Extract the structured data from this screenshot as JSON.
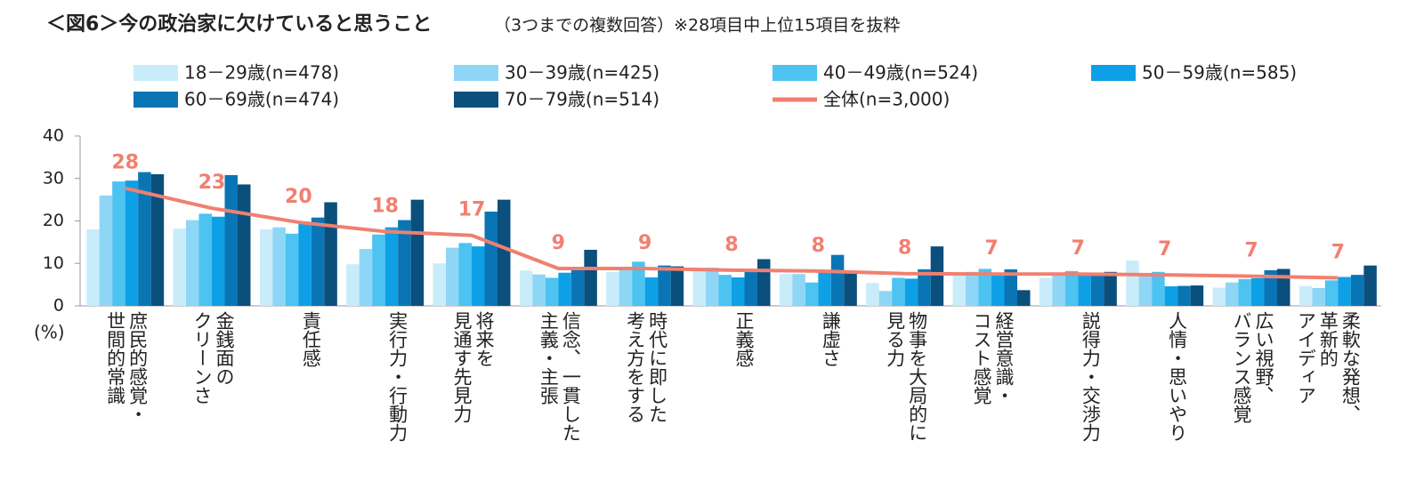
{
  "chart_data": {
    "type": "bar",
    "title": "＜図6＞今の政治家に欠けていると思うこと",
    "subtitle": "（3つまでの複数回答）※28項目中上位15項目を抜粋",
    "y_label": "(%)",
    "categories": [
      "庶民的感覚・\n世間的常識",
      "金銭面の\nクリーンさ",
      "責任感",
      "実行力・行動力",
      "将来を\n見通す先見力",
      "信念、一貫した\n主義・主張",
      "時代に即した\n考え方をする",
      "正義感",
      "謙虚さ",
      "物事を大局的に\n見る力",
      "経営意識・\nコスト感覚",
      "説得力・交渉力",
      "人情・思いやり",
      "広い視野、\nバランス感覚",
      "柔軟な発想、\n革新的\nアイディア"
    ],
    "series": [
      {
        "name": "18－29歳(n=478)",
        "color": "#c9ecfb",
        "values": [
          18,
          18.2,
          18,
          9.8,
          10,
          8.3,
          8,
          9,
          7.5,
          5.4,
          7.5,
          6.6,
          10.7,
          4.3,
          4.7
        ]
      },
      {
        "name": "30－39歳(n=425)",
        "color": "#8fd6f6",
        "values": [
          26,
          20.2,
          18.5,
          13.4,
          13.7,
          7.4,
          9.2,
          9,
          7.5,
          3.5,
          8,
          7.2,
          7.6,
          5.5,
          4.2
        ]
      },
      {
        "name": "40－49歳(n=524)",
        "color": "#4cc3f0",
        "values": [
          29.3,
          21.7,
          17,
          16.8,
          14.8,
          6.6,
          10.4,
          7.3,
          5.5,
          6.6,
          8.7,
          8.2,
          8,
          6.3,
          6
        ]
      },
      {
        "name": "50－59歳(n=585)",
        "color": "#0ea0e6",
        "values": [
          29.5,
          21,
          19.5,
          18.5,
          14,
          7.8,
          6.7,
          6.7,
          8,
          6.4,
          7.4,
          7.5,
          4.6,
          6.5,
          6.8
        ]
      },
      {
        "name": "60－69歳(n=474)",
        "color": "#0a75b5",
        "values": [
          31.5,
          30.8,
          20.8,
          20.2,
          22.2,
          8.8,
          9.5,
          8.3,
          12,
          8.6,
          8.6,
          7.7,
          4.7,
          8.4,
          7.3
        ]
      },
      {
        "name": "70－79歳(n=514)",
        "color": "#0b4f7c",
        "values": [
          31,
          28.6,
          24.4,
          25,
          25,
          13.2,
          9.3,
          11,
          8,
          14,
          3.7,
          8,
          4.8,
          8.7,
          9.5
        ]
      },
      {
        "name": "全体(n=3,000)",
        "type": "line",
        "color": "#f08070",
        "values": [
          27.7,
          23,
          19.7,
          17.5,
          16.6,
          8.8,
          8.8,
          8.4,
          8.2,
          7.6,
          7.5,
          7.5,
          7.3,
          7,
          6.6
        ],
        "value_labels": [
          "28",
          "23",
          "20",
          "18",
          "17",
          "9",
          "9",
          "8",
          "8",
          "8",
          "7",
          "7",
          "7",
          "7",
          "7"
        ]
      }
    ],
    "ylim": [
      0,
      40
    ],
    "yticks": [
      0,
      10,
      20,
      30,
      40
    ],
    "grid": false
  }
}
